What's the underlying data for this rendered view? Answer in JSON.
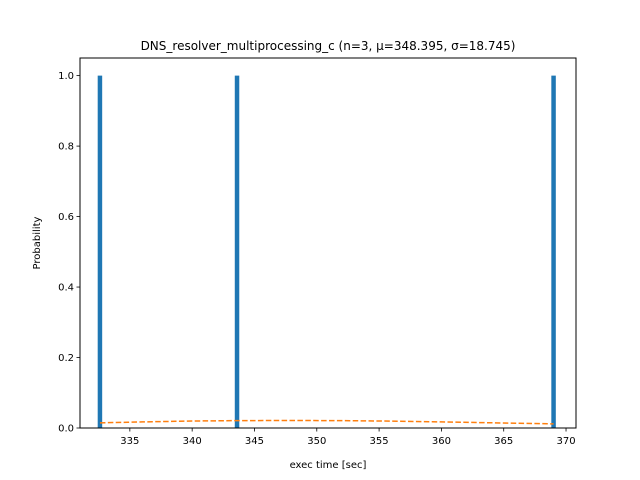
{
  "chart_data": {
    "type": "bar",
    "title": "DNS_resolver_multiprocessing_c (n=3, μ=348.395, σ=18.745)",
    "xlabel": "exec time [sec]",
    "ylabel": "Probability",
    "xlim": [
      331.0,
      370.8
    ],
    "ylim": [
      0.0,
      1.05
    ],
    "xticks": [
      335,
      340,
      345,
      350,
      355,
      360,
      365,
      370
    ],
    "xtick_labels": [
      "335",
      "340",
      "345",
      "350",
      "355",
      "360",
      "365",
      "370"
    ],
    "yticks": [
      0.0,
      0.2,
      0.4,
      0.6,
      0.8,
      1.0
    ],
    "ytick_labels": [
      "0.0",
      "0.2",
      "0.4",
      "0.6",
      "0.8",
      "1.0"
    ],
    "grid": false,
    "bars": {
      "color": "#1f77b4",
      "width": 0.36,
      "x": [
        332.6,
        343.6,
        369.0
      ],
      "values": [
        1.0,
        1.0,
        1.0
      ]
    },
    "fit_line": {
      "style": "dashed",
      "color": "#ff7f0e",
      "x": [
        332.6,
        336,
        340,
        344,
        348.4,
        352,
        356,
        360,
        364,
        369.0
      ],
      "y": [
        0.0146,
        0.0173,
        0.0198,
        0.021,
        0.0213,
        0.0209,
        0.0195,
        0.0173,
        0.0148,
        0.0117
      ]
    }
  }
}
